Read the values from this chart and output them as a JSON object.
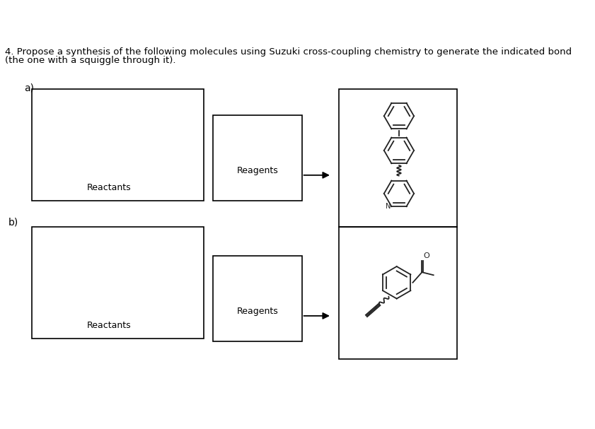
{
  "title_line1": "4. Propose a synthesis of the following molecules using Suzuki cross-coupling chemistry to generate the indicated bond",
  "title_line2": "(the one with a squiggle through it).",
  "title_fontsize": 9.5,
  "bg_color": "#ffffff",
  "label_a": "a)",
  "label_b": "b)",
  "reactants_text": "Reactants",
  "reagents_text": "Reagents",
  "box_color": "#000000",
  "text_color": "#000000",
  "arrow_color": "#000000"
}
